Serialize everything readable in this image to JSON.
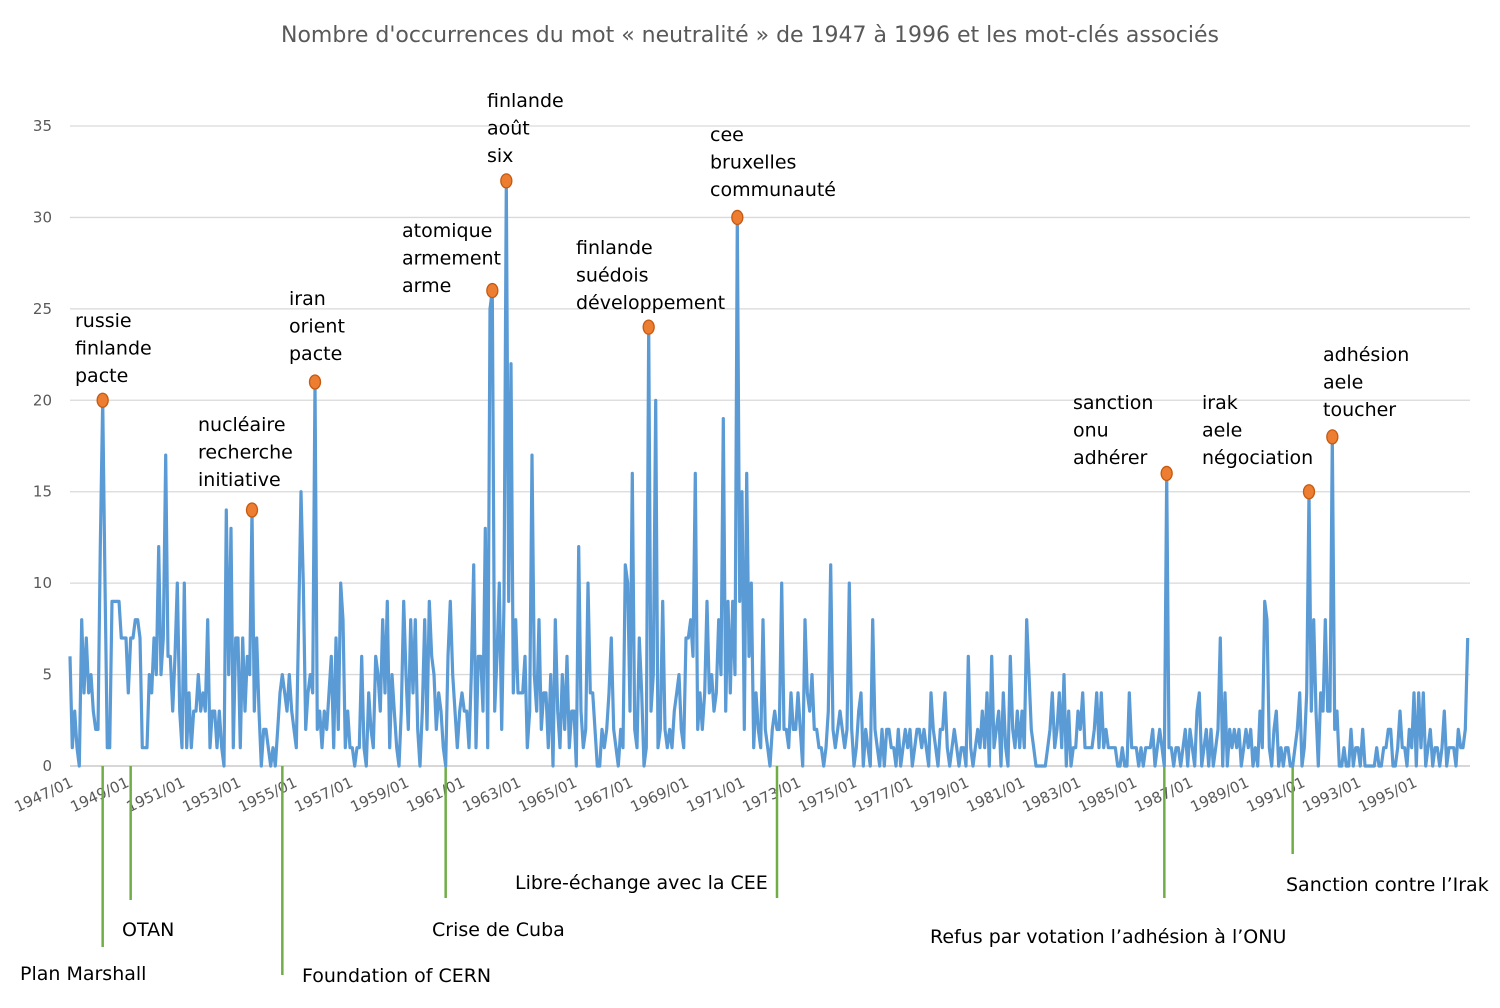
{
  "chart_data": {
    "type": "line",
    "title": "Nombre d'occurrences du mot « neutralité » de 1947 à 1996 et les mot-clés associés",
    "xlabel": "",
    "ylabel": "",
    "x_start": "1947/01",
    "x_end": "1996/12",
    "x_step": "month",
    "ylim": [
      0,
      35
    ],
    "yticks": [
      0,
      5,
      10,
      15,
      20,
      25,
      30,
      35
    ],
    "xticks": [
      "1947/01",
      "1949/01",
      "1951/01",
      "1953/01",
      "1955/01",
      "1957/01",
      "1959/01",
      "1961/01",
      "1963/01",
      "1965/01",
      "1967/01",
      "1969/01",
      "1971/01",
      "1973/01",
      "1975/01",
      "1977/01",
      "1979/01",
      "1981/01",
      "1983/01",
      "1985/01",
      "1987/01",
      "1989/01",
      "1991/01",
      "1993/01",
      "1995/01"
    ],
    "grid": true,
    "legend": "none",
    "colors": {
      "line": "#5B9BD5",
      "marker": "#ED7D31",
      "event_line": "#70AD47",
      "grid": "#D9D9D9"
    },
    "series": [
      {
        "values": [
          6,
          1,
          3,
          1,
          0,
          8,
          4,
          7,
          4,
          5,
          3,
          2,
          2,
          12,
          20,
          10,
          1,
          1,
          9,
          9,
          9,
          9,
          7,
          7,
          7,
          4,
          7,
          7,
          8,
          8,
          7,
          1,
          1,
          1,
          5,
          4,
          7,
          5,
          12,
          5,
          7,
          17,
          6,
          6,
          3,
          6,
          10,
          3,
          1,
          10,
          1,
          4,
          1,
          3,
          3,
          5,
          3,
          4,
          3,
          8,
          1,
          3,
          3,
          1,
          3,
          1,
          0,
          14,
          5,
          13,
          1,
          7,
          7,
          1,
          7,
          3,
          6,
          5,
          14,
          3,
          7,
          3,
          0,
          2,
          2,
          1,
          0,
          1,
          0,
          2,
          4,
          5,
          4,
          3,
          5,
          3,
          2,
          1,
          8,
          15,
          10,
          2,
          4,
          5,
          4,
          21,
          2,
          3,
          1,
          3,
          2,
          4,
          6,
          1,
          7,
          2,
          10,
          8,
          1,
          3,
          1,
          1,
          0,
          1,
          1,
          6,
          1,
          0,
          4,
          2,
          1,
          6,
          5,
          3,
          8,
          4,
          9,
          1,
          5,
          3,
          1,
          0,
          3,
          9,
          5,
          2,
          8,
          4,
          8,
          2,
          0,
          3,
          8,
          2,
          9,
          6,
          5,
          2,
          4,
          3,
          1,
          0,
          6,
          9,
          5,
          3,
          1,
          3,
          4,
          3,
          3,
          1,
          5,
          11,
          1,
          6,
          6,
          3,
          13,
          1,
          25,
          26,
          3,
          6,
          10,
          2,
          9,
          32,
          9,
          22,
          4,
          8,
          4,
          4,
          4,
          6,
          1,
          3,
          17,
          5,
          3,
          8,
          2,
          4,
          4,
          1,
          5,
          0,
          8,
          3,
          1,
          5,
          2,
          6,
          1,
          3,
          3,
          0,
          12,
          3,
          1,
          2,
          10,
          4,
          4,
          2,
          0,
          0,
          2,
          1,
          2,
          4,
          7,
          2,
          1,
          0,
          2,
          1,
          11,
          10,
          3,
          16,
          2,
          1,
          7,
          4,
          0,
          1,
          24,
          3,
          5,
          20,
          1,
          2,
          9,
          2,
          1,
          2,
          1,
          3,
          4,
          5,
          2,
          1,
          7,
          7,
          8,
          6,
          16,
          2,
          4,
          2,
          4,
          9,
          4,
          5,
          3,
          4,
          8,
          5,
          19,
          3,
          9,
          4,
          9,
          5,
          30,
          9,
          15,
          2,
          16,
          6,
          10,
          1,
          4,
          2,
          1,
          8,
          2,
          1,
          0,
          2,
          3,
          2,
          2,
          10,
          2,
          2,
          1,
          4,
          2,
          2,
          4,
          2,
          0,
          8,
          4,
          3,
          5,
          2,
          2,
          1,
          1,
          0,
          1,
          3,
          11,
          2,
          1,
          2,
          3,
          2,
          1,
          2,
          10,
          2,
          0,
          1,
          3,
          4,
          0,
          2,
          1,
          0,
          8,
          2,
          1,
          0,
          2,
          0,
          2,
          2,
          1,
          1,
          0,
          2,
          0,
          1,
          2,
          1,
          2,
          0,
          1,
          2,
          2,
          1,
          2,
          1,
          0,
          4,
          2,
          1,
          0,
          2,
          2,
          4,
          1,
          0,
          1,
          2,
          1,
          0,
          1,
          1,
          0,
          6,
          1,
          0,
          1,
          2,
          1,
          3,
          1,
          4,
          0,
          6,
          1,
          2,
          3,
          0,
          4,
          1,
          0,
          6,
          2,
          1,
          3,
          1,
          3,
          1,
          8,
          5,
          2,
          1,
          0,
          0,
          0,
          0,
          0,
          1,
          2,
          4,
          1,
          2,
          4,
          1,
          5,
          0,
          3,
          0,
          1,
          1,
          3,
          2,
          4,
          1,
          1,
          1,
          1,
          2,
          4,
          1,
          4,
          1,
          2,
          1,
          1,
          1,
          1,
          0,
          0,
          1,
          0,
          0,
          4,
          1,
          1,
          1,
          0,
          1,
          0,
          1,
          1,
          1,
          2,
          0,
          1,
          2,
          1,
          0,
          16,
          1,
          1,
          0,
          1,
          1,
          0,
          1,
          2,
          0,
          2,
          1,
          0,
          3,
          4,
          0,
          1,
          2,
          0,
          2,
          0,
          1,
          2,
          7,
          0,
          4,
          0,
          2,
          1,
          2,
          1,
          2,
          0,
          1,
          2,
          1,
          2,
          0,
          1,
          0,
          3,
          1,
          9,
          8,
          1,
          0,
          2,
          3,
          0,
          1,
          0,
          1,
          1,
          0,
          0,
          1,
          2,
          4,
          0,
          1,
          4,
          15,
          3,
          8,
          3,
          0,
          4,
          3,
          8,
          3,
          3,
          18,
          2,
          3,
          0,
          0,
          1,
          0,
          0,
          2,
          0,
          1,
          1,
          0,
          2,
          0,
          0,
          0,
          0,
          0,
          1,
          0,
          0,
          1,
          1,
          2,
          2,
          0,
          0,
          1,
          3,
          1,
          1,
          0,
          2,
          1,
          4,
          0,
          4,
          1,
          4,
          0,
          1,
          2,
          0,
          1,
          1,
          0,
          1,
          3,
          0,
          1,
          1,
          1,
          0,
          2,
          1,
          1,
          2,
          7
        ]
      }
    ],
    "annotations": [
      {
        "date": "1948/03",
        "value": 20,
        "keywords": [
          "russie",
          "finlande",
          "pacte"
        ]
      },
      {
        "date": "1953/07",
        "value": 14,
        "keywords": [
          "nucléaire",
          "recherche",
          "initiative"
        ]
      },
      {
        "date": "1955/10",
        "value": 21,
        "keywords": [
          "iran",
          "orient",
          "pacte"
        ]
      },
      {
        "date": "1962/02",
        "value": 26,
        "keywords": [
          "atomique",
          "armement",
          "arme"
        ]
      },
      {
        "date": "1962/08",
        "value": 32,
        "keywords": [
          "finlande",
          "août",
          "six"
        ]
      },
      {
        "date": "1967/09",
        "value": 24,
        "keywords": [
          "finlande",
          "suédois",
          "développement"
        ]
      },
      {
        "date": "1970/11",
        "value": 30,
        "keywords": [
          "cee",
          "bruxelles",
          "communauté"
        ]
      },
      {
        "date": "1986/03",
        "value": 16,
        "keywords": [
          "sanction",
          "onu",
          "adhérer"
        ]
      },
      {
        "date": "1991/04",
        "value": 15,
        "keywords": [
          "irak",
          "aele",
          "négociation"
        ]
      },
      {
        "date": "1992/02",
        "value": 18,
        "keywords": [
          "adhésion",
          "aele",
          "toucher"
        ]
      }
    ],
    "events": [
      {
        "date": "1948/03",
        "label": "Plan Marshall"
      },
      {
        "date": "1949/03",
        "label": "OTAN"
      },
      {
        "date": "1954/08",
        "label": "Foundation of CERN"
      },
      {
        "date": "1960/06",
        "label": "Crise de Cuba"
      },
      {
        "date": "1972/04",
        "label": "Libre-échange avec la CEE"
      },
      {
        "date": "1986/02",
        "label": "Refus par votation l’adhésion à l’ONU"
      },
      {
        "date": "1990/09",
        "label": "Sanction contre l’Irak"
      }
    ]
  }
}
